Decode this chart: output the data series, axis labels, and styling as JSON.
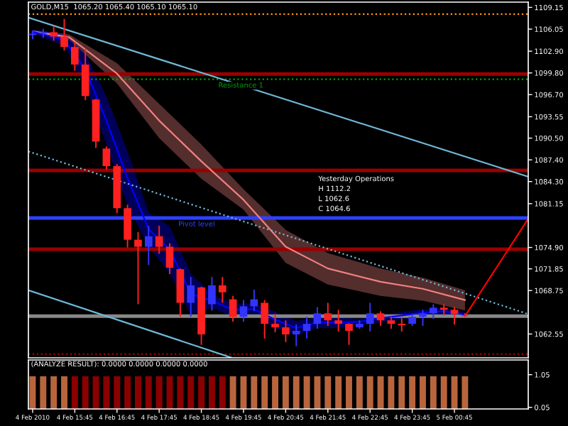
{
  "chart_data": [
    {
      "type": "candlestick",
      "title": "GOLD,M15  1065.20 1065.40 1065.10 1065.10",
      "x": [
        "2010-02-04T14:45",
        "2010-02-04T15:00",
        "2010-02-04T15:15",
        "2010-02-04T15:30",
        "2010-02-04T15:45",
        "2010-02-04T16:00",
        "2010-02-04T16:15",
        "2010-02-04T16:30",
        "2010-02-04T16:45",
        "2010-02-04T17:00",
        "2010-02-04T17:15",
        "2010-02-04T17:30",
        "2010-02-04T17:45",
        "2010-02-04T18:00",
        "2010-02-04T18:15",
        "2010-02-04T18:30",
        "2010-02-04T18:45",
        "2010-02-04T19:00",
        "2010-02-04T19:15",
        "2010-02-04T19:30",
        "2010-02-04T19:45",
        "2010-02-04T20:00",
        "2010-02-04T20:15",
        "2010-02-04T20:30",
        "2010-02-04T20:45",
        "2010-02-04T21:00",
        "2010-02-04T21:15",
        "2010-02-04T21:30",
        "2010-02-04T21:45",
        "2010-02-04T22:00",
        "2010-02-04T22:15",
        "2010-02-04T22:30",
        "2010-02-04T22:45",
        "2010-02-04T23:00",
        "2010-02-04T23:15",
        "2010-02-04T23:30",
        "2010-02-04T23:45",
        "2010-02-05T00:00",
        "2010-02-05T00:15",
        "2010-02-05T00:30",
        "2010-02-05T00:45",
        "2010-02-05T01:00"
      ],
      "ohlc": [
        [
          1105.2,
          1105.7,
          1104.7,
          1105.4
        ],
        [
          1105.4,
          1106.0,
          1104.9,
          1105.6
        ],
        [
          1105.6,
          1106.4,
          1104.5,
          1105.0
        ],
        [
          1105.0,
          1107.4,
          1103.1,
          1103.5
        ],
        [
          1103.5,
          1104.1,
          1100.2,
          1101.0
        ],
        [
          1101.0,
          1103.1,
          1096.0,
          1096.5
        ],
        [
          1096.0,
          1096.0,
          1089.2,
          1090.0
        ],
        [
          1089.0,
          1089.2,
          1086.1,
          1086.5
        ],
        [
          1086.5,
          1086.7,
          1079.9,
          1080.5
        ],
        [
          1080.5,
          1080.9,
          1075.0,
          1076.0
        ],
        [
          1076.0,
          1077.0,
          1066.9,
          1075.0
        ],
        [
          1075.0,
          1077.9,
          1072.5,
          1076.5
        ],
        [
          1076.5,
          1077.9,
          1074.1,
          1075.0
        ],
        [
          1075.0,
          1075.4,
          1071.2,
          1072.0
        ],
        [
          1071.8,
          1071.8,
          1065.1,
          1067.0
        ],
        [
          1067.0,
          1070.6,
          1065.1,
          1069.5
        ],
        [
          1069.2,
          1069.2,
          1061.1,
          1062.5
        ],
        [
          1066.8,
          1070.6,
          1066.0,
          1069.5
        ],
        [
          1069.5,
          1070.6,
          1067.1,
          1068.5
        ],
        [
          1067.5,
          1067.9,
          1064.4,
          1065.0
        ],
        [
          1065.0,
          1067.3,
          1064.4,
          1066.5
        ],
        [
          1066.5,
          1068.8,
          1065.9,
          1067.5
        ],
        [
          1067.0,
          1067.3,
          1062.0,
          1064.0
        ],
        [
          1064.0,
          1065.3,
          1062.9,
          1063.5
        ],
        [
          1063.5,
          1064.4,
          1061.5,
          1062.5
        ],
        [
          1062.5,
          1063.8,
          1060.9,
          1063.0
        ],
        [
          1063.0,
          1064.9,
          1062.0,
          1064.0
        ],
        [
          1064.0,
          1066.3,
          1063.4,
          1065.5
        ],
        [
          1065.5,
          1066.9,
          1063.8,
          1064.5
        ],
        [
          1064.5,
          1065.9,
          1063.0,
          1064.0
        ],
        [
          1064.0,
          1064.0,
          1061.1,
          1063.0
        ],
        [
          1063.5,
          1064.4,
          1063.4,
          1064.0
        ],
        [
          1064.0,
          1066.9,
          1063.0,
          1065.5
        ],
        [
          1065.5,
          1065.7,
          1063.8,
          1064.5
        ],
        [
          1064.5,
          1064.9,
          1063.4,
          1064.0
        ],
        [
          1064.0,
          1064.7,
          1063.0,
          1063.8
        ],
        [
          1064.0,
          1065.3,
          1063.8,
          1065.0
        ],
        [
          1065.0,
          1065.9,
          1063.8,
          1065.5
        ],
        [
          1065.5,
          1066.7,
          1064.8,
          1066.3
        ],
        [
          1066.3,
          1066.7,
          1065.3,
          1066.0
        ],
        [
          1066.0,
          1066.3,
          1064.0,
          1065.4
        ],
        [
          1065.2,
          1065.4,
          1065.1,
          1065.1
        ]
      ],
      "series": [
        {
          "type": "line",
          "color": "#f08080",
          "x": [
            "2010-02-04T14:45",
            "2010-02-04T15:37",
            "2010-02-04T16:45",
            "2010-02-04T17:45",
            "2010-02-04T18:45",
            "2010-02-04T19:45",
            "2010-02-04T20:45",
            "2010-02-04T21:45",
            "2010-02-04T23:00",
            "2010-02-05T00:00",
            "2010-02-05T01:00"
          ],
          "values": [
            1105.7,
            1104.9,
            1099.7,
            1093.0,
            1087.2,
            1081.7,
            1075.0,
            1071.9,
            1070.0,
            1069.0,
            1067.4
          ],
          "lower": [
            1105.5,
            1104.5,
            1098.3,
            1090.5,
            1084.7,
            1080.3,
            1072.7,
            1069.6,
            1068.0,
            1067.3,
            1065.9
          ],
          "upper": [
            1105.9,
            1105.3,
            1101.2,
            1095.4,
            1089.6,
            1083.2,
            1077.4,
            1074.1,
            1071.9,
            1070.6,
            1068.8
          ]
        },
        {
          "type": "line",
          "color": "#0000ff",
          "x": [
            "2010-02-04T14:45",
            "2010-02-04T15:30",
            "2010-02-04T16:00",
            "2010-02-04T16:30",
            "2010-02-04T17:00",
            "2010-02-04T17:30",
            "2010-02-04T18:00",
            "2010-02-04T18:30",
            "2010-02-04T19:00",
            "2010-02-04T19:30",
            "2010-02-04T20:00",
            "2010-02-04T20:30",
            "2010-02-04T21:00",
            "2010-02-04T21:30",
            "2010-02-04T22:00",
            "2010-02-04T22:30",
            "2010-02-04T23:00",
            "2010-02-04T23:30",
            "2010-02-05T00:00",
            "2010-02-05T00:30",
            "2010-02-05T01:00"
          ],
          "values": [
            1105.7,
            1104.5,
            1100.3,
            1093.0,
            1084.8,
            1077.5,
            1074.6,
            1068.3,
            1067.3,
            1066.0,
            1066.1,
            1064.6,
            1063.4,
            1064.2,
            1064.2,
            1064.3,
            1064.8,
            1065.2,
            1065.6,
            1065.8,
            1065.3
          ],
          "lower": [
            1105.4,
            1103.7,
            1097.9,
            1089.6,
            1080.9,
            1075.0,
            1071.2,
            1065.3,
            1066.3,
            1065.0,
            1065.3,
            1063.4,
            1062.4,
            1063.4,
            1063.4,
            1063.8,
            1064.2,
            1064.6,
            1065.1,
            1065.3,
            1064.9
          ],
          "upper": [
            1106.0,
            1105.3,
            1102.6,
            1096.4,
            1088.6,
            1079.9,
            1077.9,
            1071.2,
            1068.2,
            1066.9,
            1066.9,
            1065.7,
            1064.4,
            1064.9,
            1064.9,
            1064.7,
            1065.3,
            1065.7,
            1066.1,
            1066.3,
            1065.7
          ]
        },
        {
          "type": "line",
          "color": "#6fb7d6",
          "x": [
            "2010-02-04T14:39",
            "2010-02-05T02:30"
          ],
          "values": [
            1107.7,
            1085.0
          ],
          "line_style": "solid"
        },
        {
          "type": "line",
          "color": "#6fb7d6",
          "x": [
            "2010-02-04T14:39",
            "2010-02-05T02:30"
          ],
          "values": [
            1088.6,
            1065.4
          ],
          "line_style": "dotted"
        },
        {
          "type": "line",
          "color": "#6fb7d6",
          "x": [
            "2010-02-04T14:39",
            "2010-02-04T19:27"
          ],
          "values": [
            1068.8,
            1059.2
          ],
          "line_style": "solid"
        },
        {
          "type": "line",
          "color": "#ff0000",
          "x": [
            "2010-02-05T01:00",
            "2010-02-05T02:30"
          ],
          "values": [
            1065.1,
            1079.0
          ],
          "line_style": "solid"
        }
      ],
      "xlim": [
        "2010-02-04T14:39",
        "2010-02-05T02:30"
      ],
      "ylim": [
        1059.15,
        1109.9
      ],
      "yticks": [
        1109.15,
        1106.05,
        {
          "value": 1102.9,
          "label": "1102.90"
        },
        {
          "value": 1099.8,
          "label": "1099.80"
        },
        {
          "value": 1096.7,
          "label": "1096.70"
        },
        1093.55,
        {
          "value": 1090.5,
          "label": "1090.50"
        },
        {
          "value": 1087.4,
          "label": "1087.40"
        },
        {
          "value": 1084.3,
          "label": "1084.30"
        },
        1081.15,
        {
          "value": 1074.9,
          "label": "1074.90"
        },
        1071.85,
        1068.75,
        1062.55
      ],
      "ref_lines": [
        {
          "axis": "y",
          "value": 1108.2,
          "color": "#ff9900",
          "line_style": "dotted"
        },
        {
          "axis": "y",
          "value": 1099.65,
          "color": "#990000",
          "line_style": "solid"
        },
        {
          "axis": "y",
          "value": 1098.9,
          "color": "#00a000",
          "line_style": "dotted",
          "label": "Resistance 1"
        },
        {
          "axis": "y",
          "value": 1085.9,
          "color": "#990000",
          "line_style": "solid"
        },
        {
          "axis": "y",
          "value": 1079.1,
          "color": "#3040ff",
          "line_style": "solid",
          "label": "Pivot level"
        },
        {
          "axis": "y",
          "value": 1074.65,
          "color": "#990000",
          "line_style": "solid"
        },
        {
          "axis": "y",
          "value": 1065.1,
          "color": "#888888",
          "line_style": "solid"
        },
        {
          "axis": "y",
          "value": 1059.7,
          "color": "#aa0000",
          "line_style": "dotted"
        }
      ],
      "annotations": [
        "Yesterday Operations",
        "H 1112.2",
        "L 1062.6",
        "C 1064.6"
      ],
      "tick_labels": "y",
      "grid": false
    },
    {
      "type": "bar",
      "x": [
        "2010-02-04T14:45",
        "2010-02-04T15:00",
        "2010-02-04T15:15",
        "2010-02-04T15:30",
        "2010-02-04T15:45",
        "2010-02-04T16:00",
        "2010-02-04T16:15",
        "2010-02-04T16:30",
        "2010-02-04T16:45",
        "2010-02-04T17:00",
        "2010-02-04T17:15",
        "2010-02-04T17:30",
        "2010-02-04T17:45",
        "2010-02-04T18:00",
        "2010-02-04T18:15",
        "2010-02-04T18:30",
        "2010-02-04T18:45",
        "2010-02-04T19:00",
        "2010-02-04T19:15",
        "2010-02-04T19:30",
        "2010-02-04T19:45",
        "2010-02-04T20:00",
        "2010-02-04T20:15",
        "2010-02-04T20:30",
        "2010-02-04T20:45",
        "2010-02-04T21:00",
        "2010-02-04T21:15",
        "2010-02-04T21:30",
        "2010-02-04T21:45",
        "2010-02-04T22:00",
        "2010-02-04T22:15",
        "2010-02-04T22:30",
        "2010-02-04T22:45",
        "2010-02-04T23:00",
        "2010-02-04T23:15",
        "2010-02-04T23:30",
        "2010-02-04T23:45",
        "2010-02-05T00:00",
        "2010-02-05T00:15",
        "2010-02-05T00:30",
        "2010-02-05T00:45",
        "2010-02-05T01:00"
      ],
      "values": [
        1,
        1,
        1,
        1,
        1,
        1,
        1,
        1,
        1,
        1,
        1,
        1,
        1,
        1,
        1,
        1,
        1,
        1,
        1,
        1,
        1,
        1,
        1,
        1,
        1,
        1,
        1,
        1,
        1,
        1,
        1,
        1,
        1,
        1,
        1,
        1,
        1,
        1,
        1,
        1,
        1,
        1
      ],
      "colors": [
        "#b8653e",
        "#b8653e",
        "#b8653e",
        "#b8653e",
        "#8b0000",
        "#8b0000",
        "#8b0000",
        "#8b0000",
        "#8b0000",
        "#8b0000",
        "#8b0000",
        "#8b0000",
        "#8b0000",
        "#8b0000",
        "#8b0000",
        "#8b0000",
        "#8b0000",
        "#8b0000",
        "#8b0000",
        "#b8653e",
        "#b8653e",
        "#b8653e",
        "#b8653e",
        "#b8653e",
        "#b8653e",
        "#b8653e",
        "#b8653e",
        "#b8653e",
        "#b8653e",
        "#b8653e",
        "#b8653e",
        "#b8653e",
        "#b8653e",
        "#b8653e",
        "#b8653e",
        "#b8653e",
        "#b8653e",
        "#b8653e",
        "#b8653e",
        "#b8653e",
        "#b8653e",
        "#b8653e"
      ],
      "xlim": [
        "2010-02-04T14:39",
        "2010-02-05T02:30"
      ],
      "ylim": [
        0,
        1.5
      ],
      "yticks": [
        0.05,
        1.05
      ],
      "xticks": [
        {
          "value": "2010-02-04T14:45",
          "label": "4 Feb 2010"
        },
        {
          "value": "2010-02-04T15:45",
          "label": "4 Feb 15:45"
        },
        {
          "value": "2010-02-04T16:45",
          "label": "4 Feb 16:45"
        },
        {
          "value": "2010-02-04T17:45",
          "label": "4 Feb 17:45"
        },
        {
          "value": "2010-02-04T18:45",
          "label": "4 Feb 18:45"
        },
        {
          "value": "2010-02-04T19:45",
          "label": "4 Feb 19:45"
        },
        {
          "value": "2010-02-04T20:45",
          "label": "4 Feb 20:45"
        },
        {
          "value": "2010-02-04T21:45",
          "label": "4 Feb 21:45"
        },
        {
          "value": "2010-02-04T22:45",
          "label": "4 Feb 22:45"
        },
        {
          "value": "2010-02-04T23:45",
          "label": "4 Feb 23:45"
        },
        {
          "value": "2010-02-05T00:45",
          "label": "5 Feb 00:45"
        }
      ],
      "annotations": [
        "(ANALYZE RESULT): 0.0000 0.0000 0.0000 0.0000"
      ],
      "grid": false
    }
  ]
}
